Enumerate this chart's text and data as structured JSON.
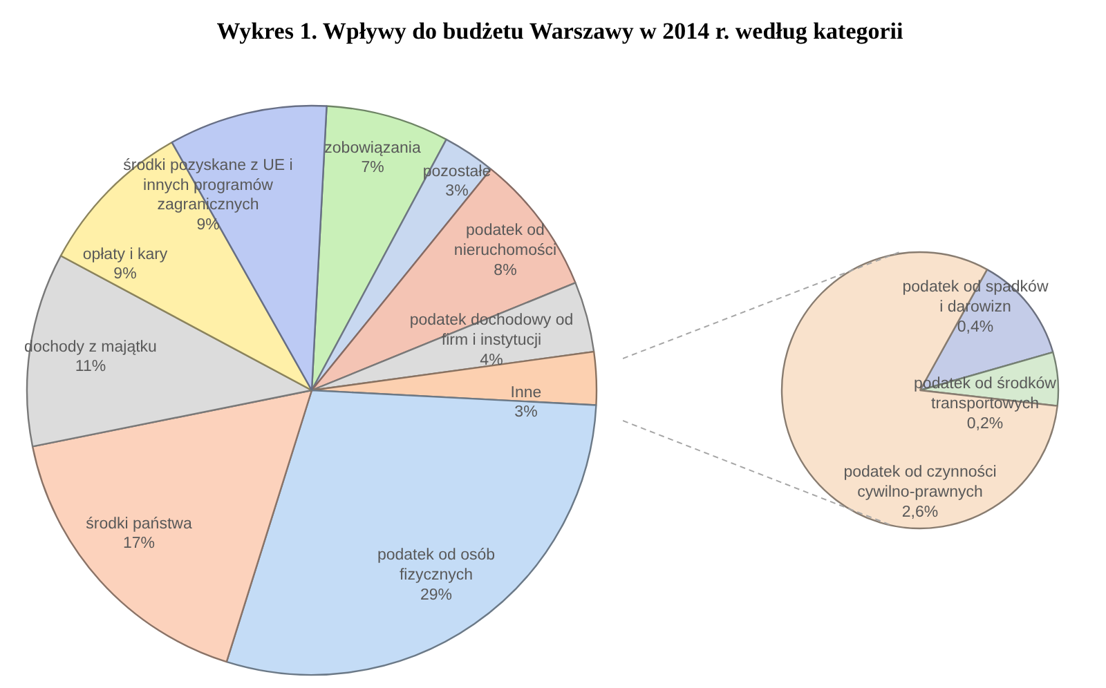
{
  "chart_data": [
    {
      "type": "pie",
      "title": "Wykres 1. Wpływy do budżetu Warszawy w 2014 r. według kategorii",
      "categories": [
        "zobowiązania",
        "pozostałe",
        "podatek od nieruchomości",
        "podatek dochodowy od firm i instytucji",
        "Inne",
        "podatek od osób fizycznych",
        "środki państwa",
        "dochody z majątku",
        "opłaty i kary",
        "środki pozyskane z UE i innych programów zagranicznych"
      ],
      "values": [
        7,
        3,
        8,
        4,
        3,
        29,
        17,
        11,
        9,
        9
      ],
      "value_labels": [
        "7%",
        "3%",
        "8%",
        "4%",
        "3%",
        "29%",
        "17%",
        "11%",
        "9%",
        "9%"
      ],
      "colors": [
        "#c9f0b8",
        "#c8d8f0",
        "#f4c4b4",
        "#dcdcdc",
        "#fcd0b0",
        "#c4dcf6",
        "#fcd2bc",
        "#dcdcdc",
        "#fff0a8",
        "#bccaf4"
      ]
    },
    {
      "type": "pie",
      "categories": [
        "podatek od spadków i darowizn",
        "podatek od środków transportowych",
        "podatek od czynności cywilno-prawnych"
      ],
      "values": [
        0.4,
        0.2,
        2.6
      ],
      "value_labels": [
        "0,4%",
        "0,2%",
        "2,6%"
      ],
      "colors": [
        "#c4cce8",
        "#d6ead0",
        "#f9e2cc"
      ]
    }
  ]
}
